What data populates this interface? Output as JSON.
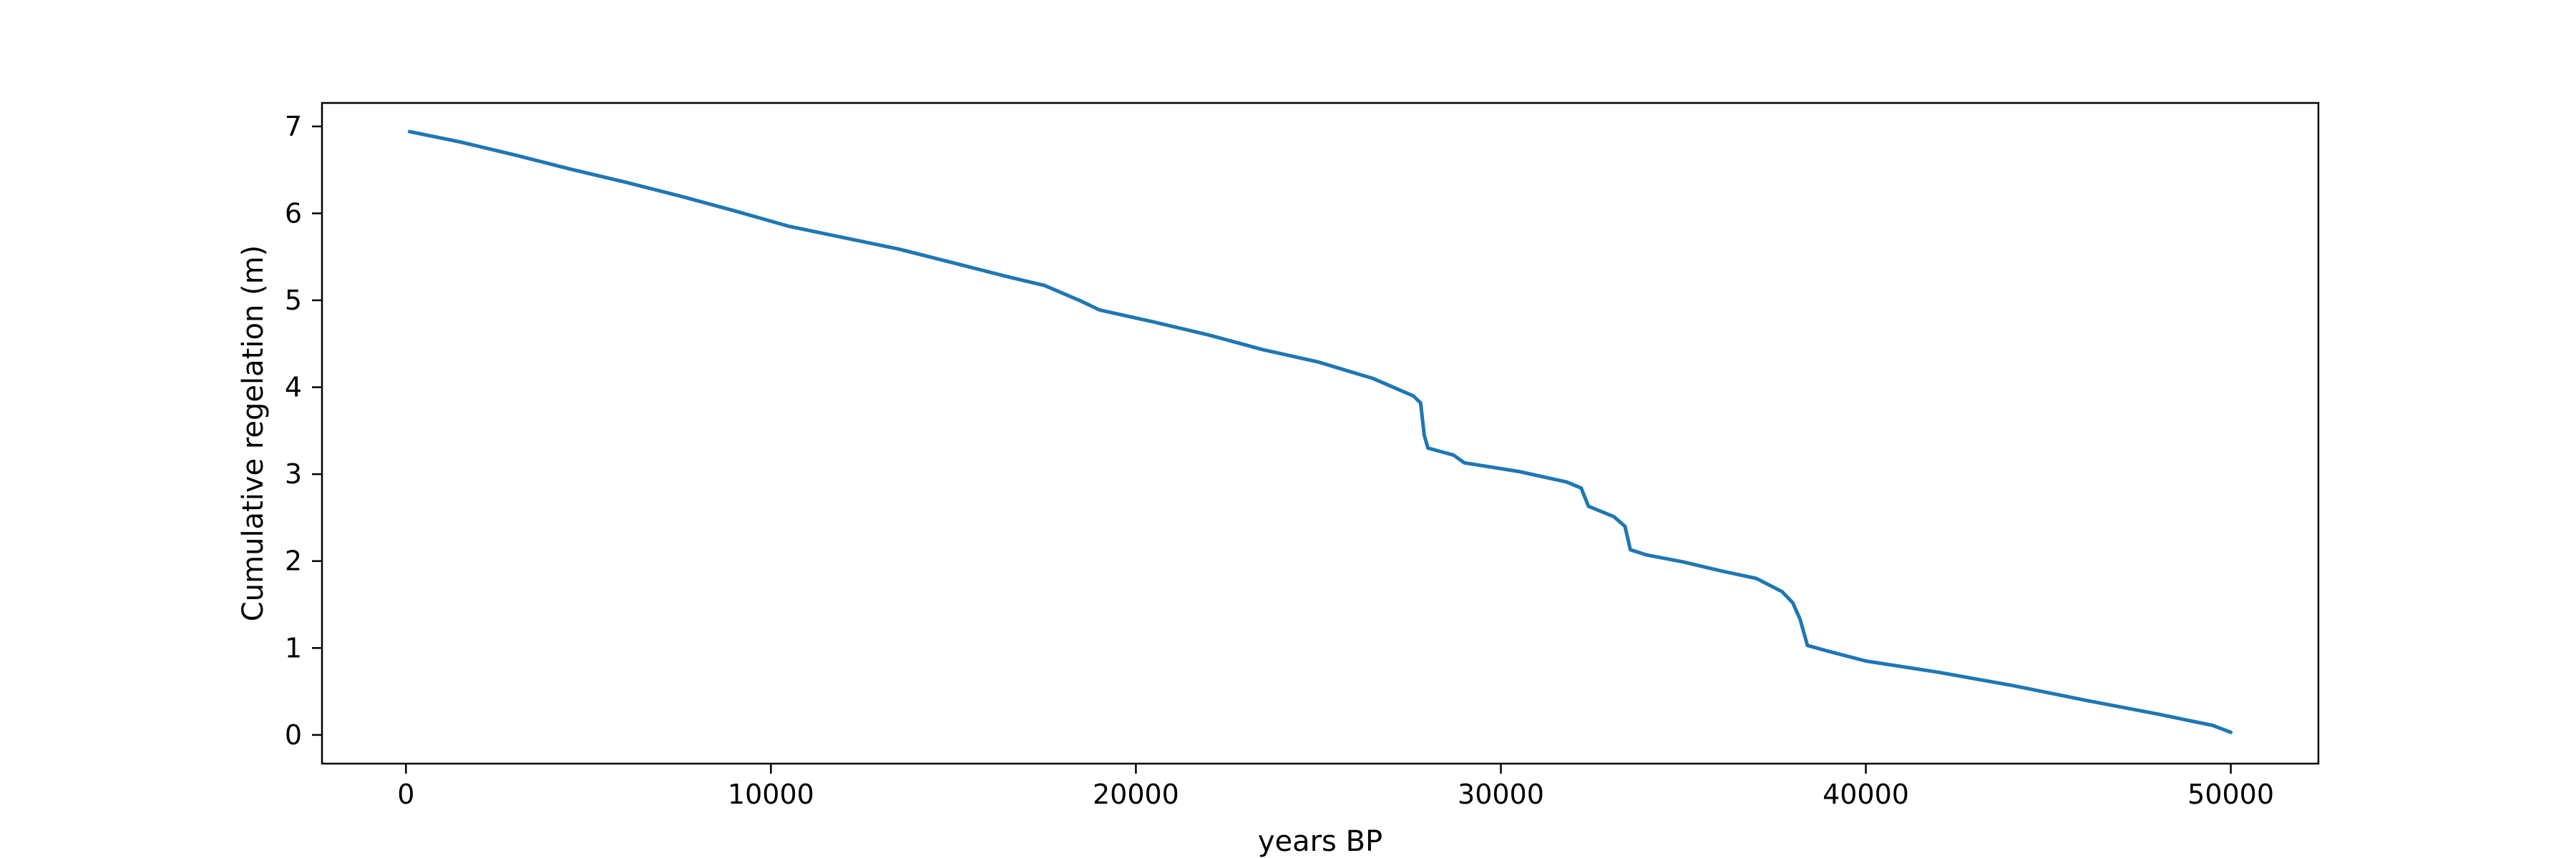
{
  "chart_data": {
    "type": "line",
    "title": "",
    "xlabel": "years BP",
    "ylabel": "Cumulative regelation (m)",
    "xlim": [
      -2300,
      52400
    ],
    "ylim": [
      -0.33,
      7.27
    ],
    "xticks": [
      0,
      10000,
      20000,
      30000,
      40000,
      50000
    ],
    "xtick_labels": [
      "0",
      "10000",
      "20000",
      "30000",
      "40000",
      "50000"
    ],
    "yticks": [
      0,
      1,
      2,
      3,
      4,
      5,
      6,
      7
    ],
    "ytick_labels": [
      "0",
      "1",
      "2",
      "3",
      "4",
      "5",
      "6",
      "7"
    ],
    "grid": false,
    "line_color": "#1f77b4",
    "series": [
      {
        "x": [
          100,
          1500,
          3000,
          4500,
          6000,
          7500,
          9000,
          10500,
          12000,
          13500,
          15000,
          16500,
          17500,
          18500,
          19000,
          20500,
          22000,
          23500,
          25000,
          26500,
          27600,
          27800,
          27900,
          28000,
          28700,
          29000,
          30500,
          31800,
          32200,
          32400,
          33100,
          33400,
          33550,
          34000,
          35000,
          36000,
          37000,
          37700,
          38000,
          38200,
          38400,
          39000,
          40000,
          42000,
          44000,
          46000,
          48000,
          49500,
          50000
        ],
        "y": [
          6.94,
          6.82,
          6.67,
          6.51,
          6.36,
          6.2,
          6.03,
          5.85,
          5.72,
          5.59,
          5.43,
          5.27,
          5.17,
          4.99,
          4.89,
          4.75,
          4.6,
          4.43,
          4.29,
          4.1,
          3.9,
          3.82,
          3.45,
          3.3,
          3.22,
          3.13,
          3.03,
          2.91,
          2.84,
          2.63,
          2.51,
          2.4,
          2.13,
          2.07,
          1.99,
          1.89,
          1.8,
          1.65,
          1.52,
          1.33,
          1.03,
          0.96,
          0.85,
          0.72,
          0.57,
          0.4,
          0.24,
          0.11,
          0.03
        ]
      }
    ]
  }
}
